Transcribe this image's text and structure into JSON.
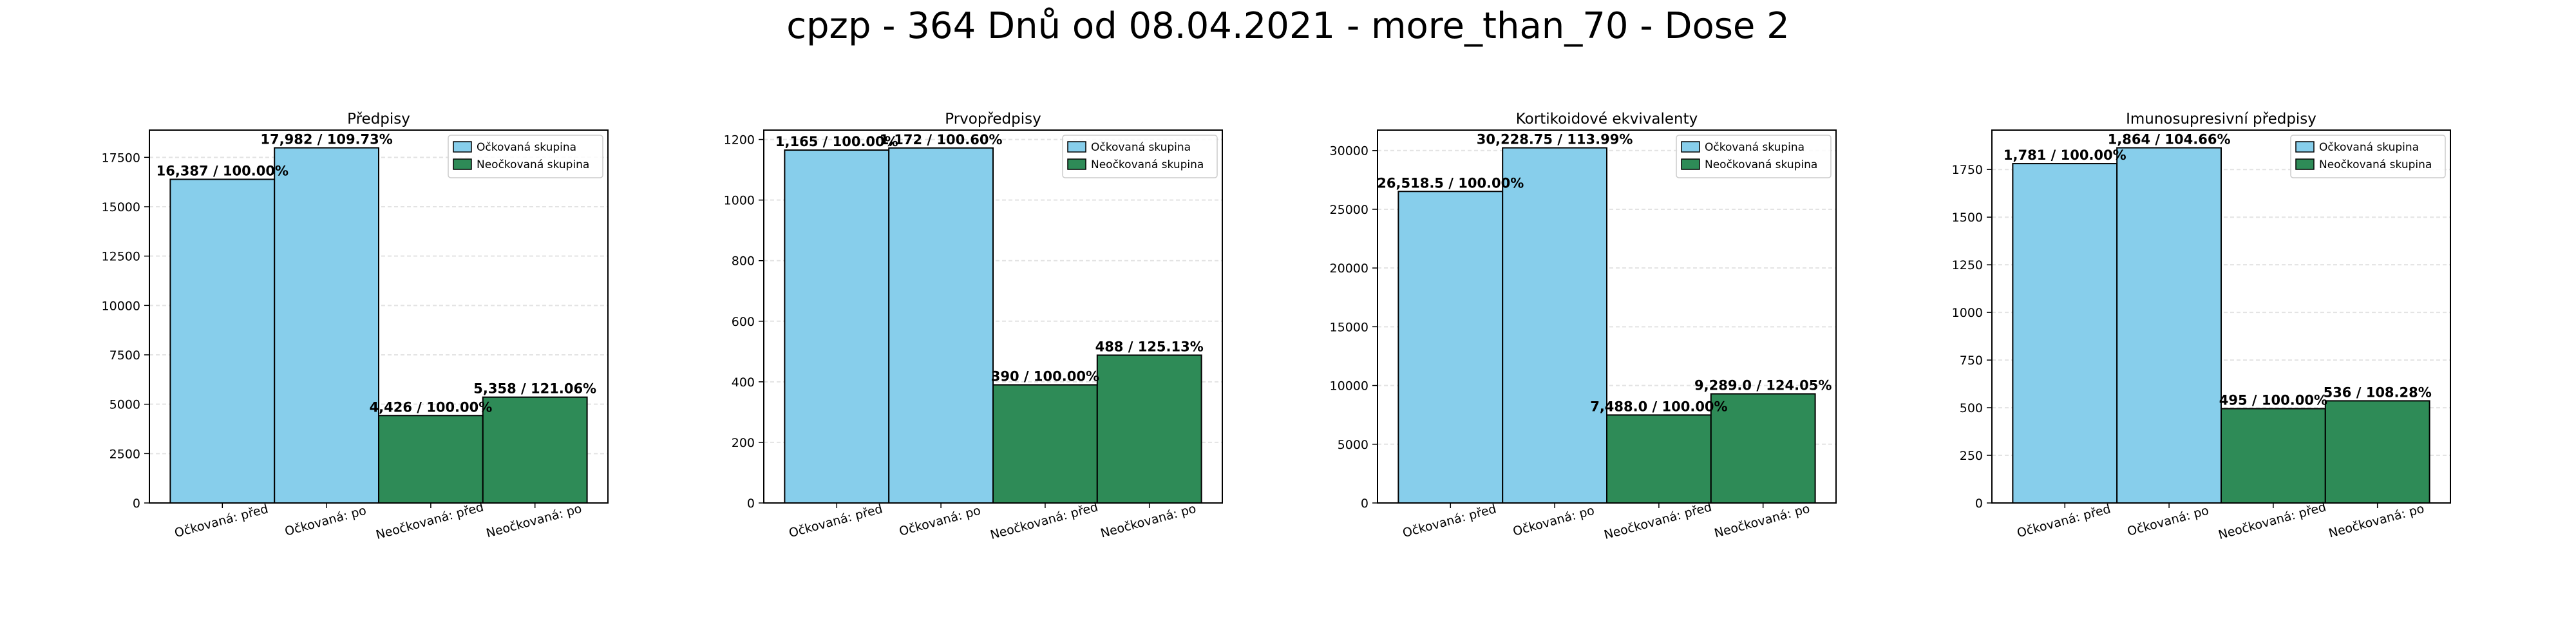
{
  "suptitle": "cpzp - 364 Dnů od 08.04.2021 - more_than_70 - Dose 2",
  "colors": {
    "vaccinated": "#87ceeb",
    "unvaccinated": "#2e8b57",
    "edge": "#000000"
  },
  "legend_labels": [
    "Očkovaná skupina",
    "Neočkovaná skupina"
  ],
  "chart_data": [
    {
      "type": "bar",
      "title": "Předpisy",
      "categories": [
        "Očkovaná: před",
        "Očkovaná: po",
        "Neočkovaná: před",
        "Neočkovaná: po"
      ],
      "values": [
        16387,
        17982,
        4426,
        5358
      ],
      "labels": [
        "16,387 / 100.00%",
        "17,982 / 109.73%",
        "4,426 / 100.00%",
        "5,358 / 121.06%"
      ],
      "ylim": [
        0,
        18880
      ],
      "yticks": [
        0,
        2500,
        5000,
        7500,
        10000,
        12500,
        15000,
        17500
      ],
      "legend": "top-right",
      "grid": true
    },
    {
      "type": "bar",
      "title": "Prvopředpisy",
      "categories": [
        "Očkovaná: před",
        "Očkovaná: po",
        "Neočkovaná: před",
        "Neočkovaná: po"
      ],
      "values": [
        1165,
        1172,
        390,
        488
      ],
      "labels": [
        "1,165 / 100.00%",
        "1,172 / 100.60%",
        "390 / 100.00%",
        "488 / 125.13%"
      ],
      "ylim": [
        0,
        1231
      ],
      "yticks": [
        0,
        200,
        400,
        600,
        800,
        1000,
        1200
      ],
      "legend": "top-right",
      "grid": true
    },
    {
      "type": "bar",
      "title": "Kortikoidové ekvivalenty",
      "categories": [
        "Očkovaná: před",
        "Očkovaná: po",
        "Neočkovaná: před",
        "Neočkovaná: po"
      ],
      "values": [
        26518.5,
        30228.75,
        7488.0,
        9289.0
      ],
      "labels": [
        "26,518.5 / 100.00%",
        "30,228.75 / 113.99%",
        "7,488.0 / 100.00%",
        "9,289.0 / 124.05%"
      ],
      "ylim": [
        0,
        31740
      ],
      "yticks": [
        0,
        5000,
        10000,
        15000,
        20000,
        25000,
        30000
      ],
      "legend": "top-right",
      "grid": true
    },
    {
      "type": "bar",
      "title": "Imunosupresivní předpisy",
      "categories": [
        "Očkovaná: před",
        "Očkovaná: po",
        "Neočkovaná: před",
        "Neočkovaná: po"
      ],
      "values": [
        1781,
        1864,
        495,
        536
      ],
      "labels": [
        "1,781 / 100.00%",
        "1,864 / 104.66%",
        "495 / 100.00%",
        "536 / 108.28%"
      ],
      "ylim": [
        0,
        1957
      ],
      "yticks": [
        0,
        250,
        500,
        750,
        1000,
        1250,
        1500,
        1750
      ],
      "legend": "top-right",
      "grid": true
    }
  ]
}
